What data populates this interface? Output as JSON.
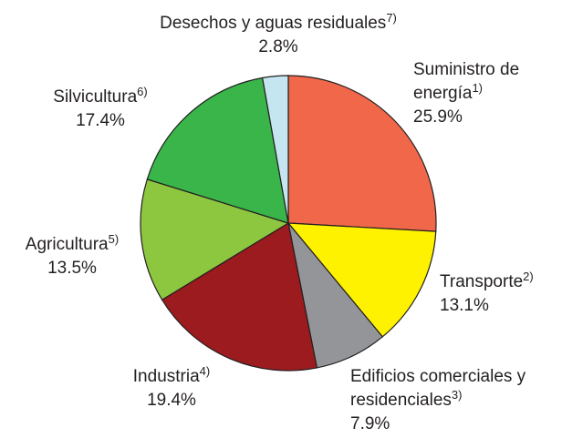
{
  "chart_data": {
    "type": "pie",
    "categories": [
      "Suministro de energía",
      "Transporte",
      "Edificios comerciales y residenciales",
      "Industria",
      "Agricultura",
      "Silvicultura",
      "Desechos y aguas residuales"
    ],
    "notes": [
      "1)",
      "2)",
      "3)",
      "4)",
      "5)",
      "6)",
      "7)"
    ],
    "values": [
      25.9,
      13.1,
      7.9,
      19.4,
      13.5,
      17.4,
      2.8
    ],
    "value_labels": [
      "25.9%",
      "13.1%",
      "7.9%",
      "19.4%",
      "13.5%",
      "17.4%",
      "2.8%"
    ],
    "colors": [
      "#f0674a",
      "#fff200",
      "#939598",
      "#9b1b1f",
      "#8dc63f",
      "#39b54a",
      "#c5e6f0"
    ]
  }
}
